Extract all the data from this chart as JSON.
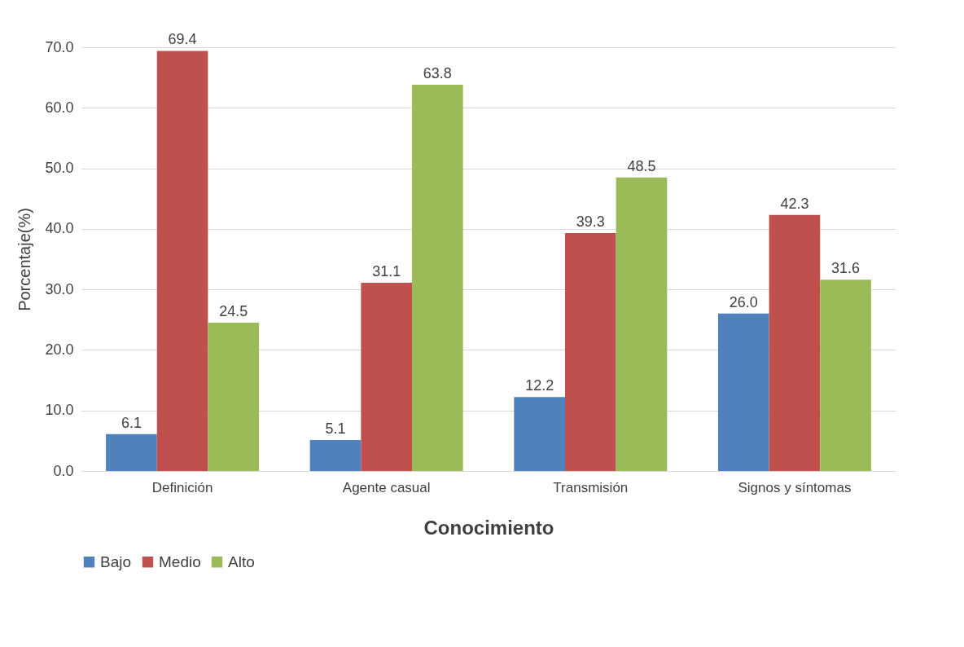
{
  "chart_data": {
    "type": "bar",
    "xlabel": "Conocimiento",
    "ylabel": "Porcentaje(%)",
    "categories": [
      "Definición",
      "Agente casual",
      "Transmisión",
      "Signos y síntomas"
    ],
    "series": [
      {
        "name": "Bajo",
        "color": "#4f81bd",
        "values": [
          6.1,
          5.1,
          12.2,
          26.0
        ],
        "value_labels": [
          "6.1",
          "5.1",
          "12.2",
          "26.0"
        ]
      },
      {
        "name": "Medio",
        "color": "#c0504d",
        "values": [
          69.4,
          31.1,
          39.3,
          42.3
        ],
        "value_labels": [
          "69.4",
          "31.1",
          "39.3",
          "42.3"
        ]
      },
      {
        "name": "Alto",
        "color": "#9bbb59",
        "values": [
          24.5,
          63.8,
          48.5,
          31.6
        ],
        "value_labels": [
          "24.5",
          "63.8",
          "48.5",
          "31.6"
        ]
      }
    ],
    "ylim": [
      0,
      70
    ],
    "yticks": [
      {
        "value": 0,
        "label": "0.0"
      },
      {
        "value": 10,
        "label": "10.0"
      },
      {
        "value": 20,
        "label": "20.0"
      },
      {
        "value": 30,
        "label": "30.0"
      },
      {
        "value": 40,
        "label": "40.0"
      },
      {
        "value": 50,
        "label": "50.0"
      },
      {
        "value": 60,
        "label": "60.0"
      },
      {
        "value": 70,
        "label": "70.0"
      }
    ],
    "grid": "y",
    "legend": "bottom"
  }
}
